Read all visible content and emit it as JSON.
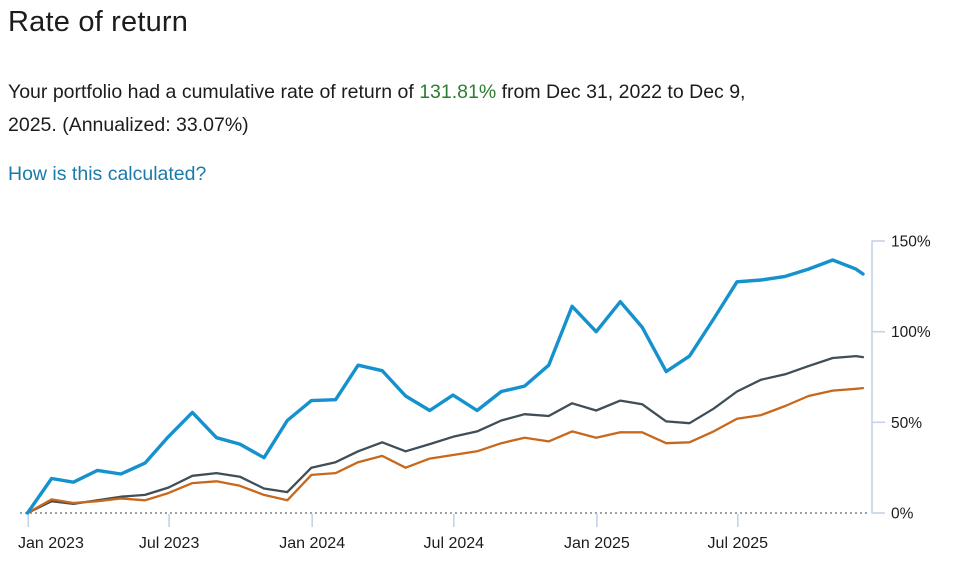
{
  "page": {
    "title": "Rate of return",
    "summary": {
      "text_before_value": "Your portfolio had a cumulative rate of return of ",
      "value": "131.81%",
      "text_after_value": " from Dec 31, 2022 to Dec 9,",
      "text_line2": "2025. (Annualized: 33.07%)"
    },
    "link_label": "How is this calculated?"
  },
  "colors": {
    "title_text": "#1c1c1c",
    "body_text": "#1c1c1c",
    "highlight_green": "#2e7d32",
    "link_blue": "#1a7aab",
    "portfolio_blue": "#1591cd",
    "benchmark_gray": "#3f4e57",
    "benchmark_orange": "#c8681c",
    "axis_blue": "#c3d3e8",
    "zero_dotted": "#9aa1a8",
    "tick_label": "#1c1c1c"
  },
  "chart_data": {
    "type": "line",
    "title": "",
    "xlabel": "",
    "ylabel": "",
    "grid": false,
    "legend": "none",
    "period_start": "Dec 31, 2022",
    "period_end": "Dec 9, 2025",
    "y_axis": {
      "side": "right",
      "range": [
        0,
        150
      ],
      "unit": "%",
      "ticks": [
        {
          "label": "0%",
          "value": 0
        },
        {
          "label": "50%",
          "value": 50
        },
        {
          "label": "100%",
          "value": 100
        },
        {
          "label": "150%",
          "value": 150
        }
      ]
    },
    "x_axis": {
      "ticks": [
        {
          "label": "Jan 2023",
          "day": 1
        },
        {
          "label": "Jul 2023",
          "day": 182
        },
        {
          "label": "Jan 2024",
          "day": 366
        },
        {
          "label": "Jul 2024",
          "day": 548
        },
        {
          "label": "Jan 2025",
          "day": 732
        },
        {
          "label": "Jul 2025",
          "day": 913
        }
      ]
    },
    "x_days": [
      0,
      31,
      59,
      90,
      120,
      151,
      181,
      212,
      243,
      273,
      304,
      334,
      365,
      396,
      425,
      456,
      486,
      517,
      547,
      578,
      609,
      639,
      670,
      700,
      731,
      762,
      790,
      821,
      851,
      882,
      912,
      943,
      974,
      1004,
      1035,
      1065,
      1074
    ],
    "x_labels": [
      "Dec 31, 2022",
      "Jan 2023",
      "Feb 2023",
      "Mar 2023",
      "Apr 2023",
      "May 2023",
      "Jun 2023",
      "Jul 2023",
      "Aug 2023",
      "Sep 2023",
      "Oct 2023",
      "Nov 2023",
      "Dec 2023",
      "Jan 2024",
      "Feb 2024",
      "Mar 2024",
      "Apr 2024",
      "May 2024",
      "Jun 2024",
      "Jul 2024",
      "Aug 2024",
      "Sep 2024",
      "Oct 2024",
      "Nov 2024",
      "Dec 2024",
      "Jan 2025",
      "Feb 2025",
      "Mar 2025",
      "Apr 2025",
      "May 2025",
      "Jun 2025",
      "Jul 2025",
      "Aug 2025",
      "Sep 2025",
      "Oct 2025",
      "Nov 2025",
      "Dec 9, 2025"
    ],
    "series": [
      {
        "name": "benchmark-gray",
        "color_key": "benchmark_gray",
        "values": [
          0,
          6.5,
          5,
          7,
          9,
          10,
          14,
          20.5,
          22,
          20,
          13.5,
          11.5,
          25,
          28,
          34,
          39,
          34,
          38,
          42,
          45,
          51,
          54.5,
          53.5,
          60.5,
          56.5,
          62,
          60,
          50.5,
          49.5,
          57.5,
          67,
          73.5,
          76.5,
          81,
          85.5,
          86.5,
          86
        ]
      },
      {
        "name": "benchmark-orange",
        "color_key": "benchmark_orange",
        "values": [
          0,
          7.5,
          5.5,
          6.5,
          8,
          7,
          11,
          16.5,
          17.5,
          15,
          10,
          7,
          21,
          22,
          28,
          31.5,
          25,
          30,
          32,
          34,
          38.5,
          41.5,
          39.5,
          45,
          41.5,
          44.5,
          44.5,
          38.5,
          39,
          45,
          52,
          54,
          59,
          64.5,
          67.5,
          68.5,
          68.9
        ]
      },
      {
        "name": "portfolio",
        "color_key": "portfolio_blue",
        "values": [
          0,
          19,
          17,
          23.5,
          21.5,
          27.5,
          42,
          55.5,
          41.5,
          38,
          30.5,
          51,
          62,
          62.5,
          81.5,
          78.5,
          64.5,
          56.5,
          65,
          56.5,
          67,
          70,
          81.5,
          114,
          100,
          116.5,
          102.5,
          78,
          86.5,
          107,
          127.5,
          128.5,
          130.5,
          134.5,
          139.5,
          134.5,
          131.81
        ]
      }
    ],
    "final_values": {
      "portfolio": 131.81,
      "benchmark_gray": 86,
      "benchmark_orange": 68.9
    }
  }
}
